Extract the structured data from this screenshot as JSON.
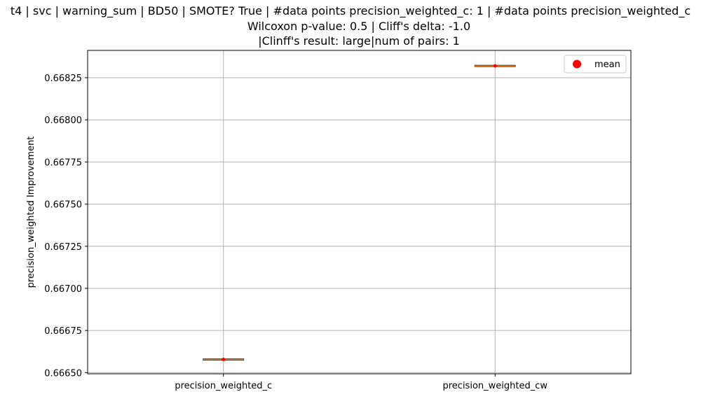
{
  "chart_data": {
    "type": "box",
    "title_lines": [
      "t4 | svc | warning_sum | BD50 | SMOTE? True | #data points precision_weighted_c: 1 | #data points precision_weighted_c",
      "Wilcoxon p-value: 0.5 | Cliff's delta: -1.0",
      "|Clinff's result: large|num of pairs: 1"
    ],
    "ylabel": "precision_weighted Improvement",
    "xlabel": "",
    "categories": [
      "precision_weighted_c",
      "precision_weighted_cw"
    ],
    "series": [
      {
        "name": "precision_weighted_c",
        "median": 0.666578,
        "mean": 0.666578
      },
      {
        "name": "precision_weighted_cw",
        "median": 0.66832,
        "mean": 0.66832
      }
    ],
    "ylim": [
      0.666493,
      0.668412
    ],
    "yticks": [
      0.6665,
      0.66675,
      0.667,
      0.66725,
      0.6675,
      0.66775,
      0.668,
      0.66825
    ],
    "ytick_labels": [
      "0.66650",
      "0.66675",
      "0.66700",
      "0.66725",
      "0.66750",
      "0.66775",
      "0.66800",
      "0.66825"
    ],
    "grid": true,
    "legend": {
      "entries": [
        {
          "label": "mean",
          "color": "#ff0000"
        }
      ],
      "position": "top-right"
    },
    "colors": {
      "median": "#ff7f0e",
      "mean": "#ff0000",
      "grid": "#b0b0b0",
      "box": "#000000"
    }
  }
}
